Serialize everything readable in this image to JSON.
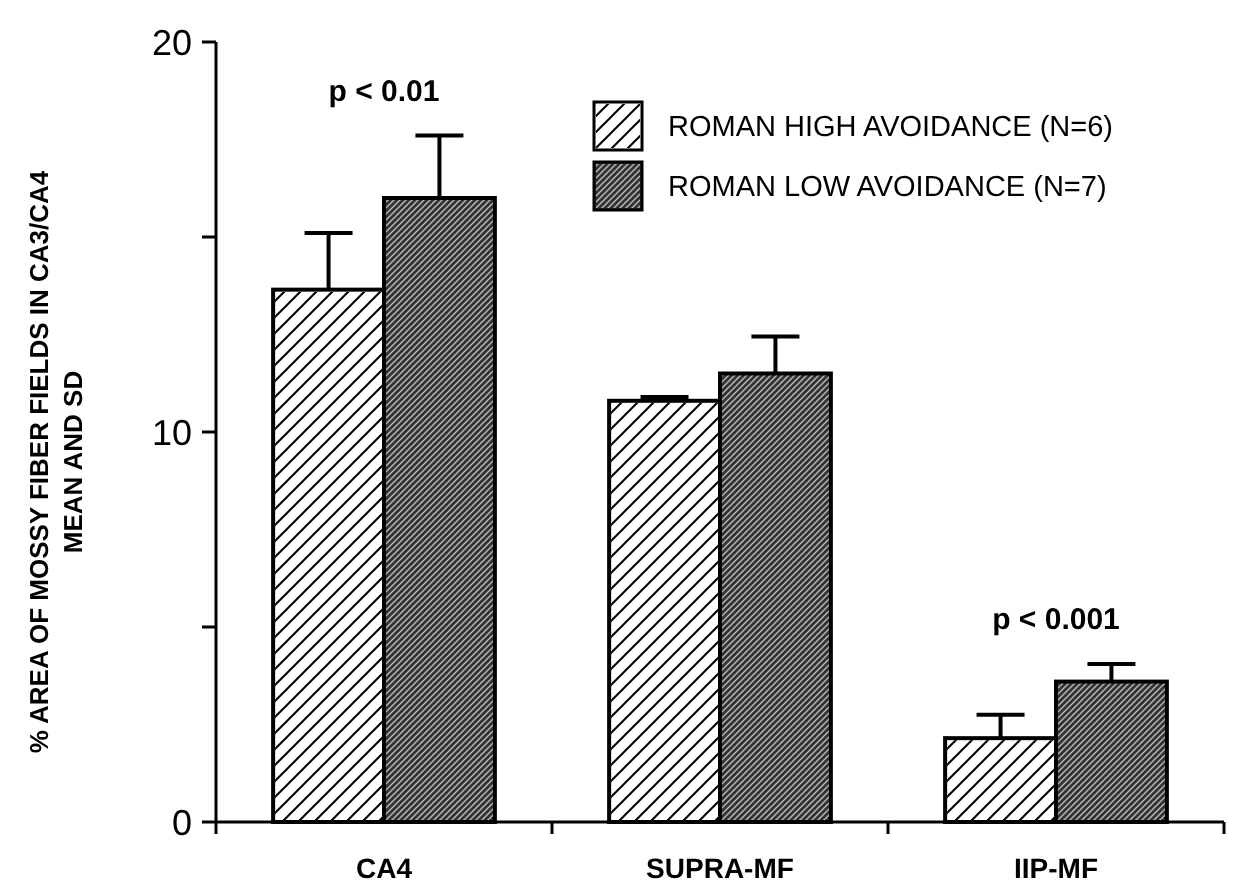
{
  "chart_data": {
    "type": "bar",
    "ylabel": "% AREA OF MOSSY FIBER FIELDS IN CA3/CA4\nMEAN  AND SD",
    "categories": [
      "CA4",
      "SUPRA-MF",
      "IIP-MF"
    ],
    "series": [
      {
        "name": "ROMAN HIGH AVOIDANCE (N=6)",
        "color": "#ffffff",
        "values": [
          13.65,
          10.8,
          2.15
        ],
        "errors": [
          1.45,
          0.1,
          0.6
        ]
      },
      {
        "name": "ROMAN LOW AVOIDANCE  (N=7)",
        "color": "#333333",
        "values": [
          16.0,
          11.5,
          3.6
        ],
        "errors": [
          1.6,
          0.95,
          0.45
        ]
      }
    ],
    "ylim": [
      0,
      20
    ],
    "yticks": [
      0,
      {
        "value": 5,
        "label": null
      },
      10,
      {
        "value": 15,
        "label": null
      },
      20
    ],
    "annotations": [
      "p < 0.01",
      "p < 0.001"
    ],
    "legend": "top right",
    "grid": false
  }
}
